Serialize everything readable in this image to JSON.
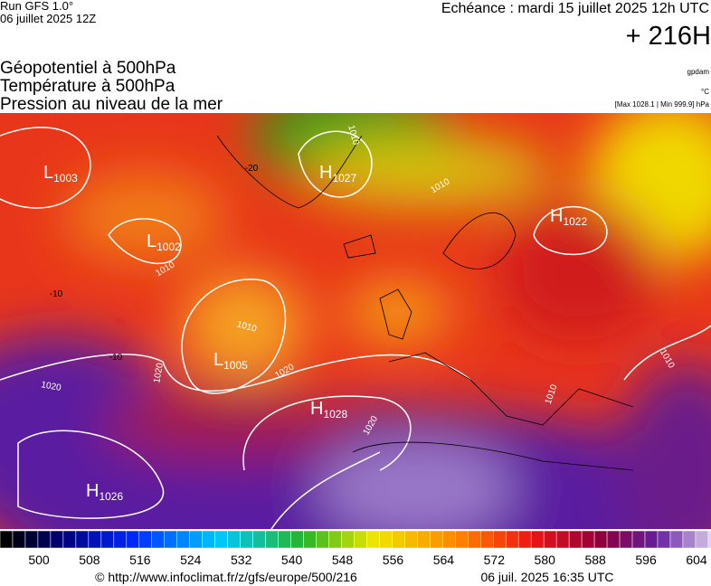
{
  "header": {
    "run": "Run GFS 1.0°",
    "run_date": "06 juillet 2025 12Z",
    "valid": "Echéance : mardi 15 juillet 2025 12h UTC",
    "lead": "+ 216H",
    "fields": [
      "Géopotentiel à 500hPa",
      "Température à 500hPa",
      "Pression au niveau de la mer"
    ],
    "units": [
      "gpdam",
      "°C",
      "[Max 1028.1 | Min 999.9] hPa"
    ]
  },
  "map": {
    "centers": [
      {
        "letter": "L",
        "value": "1003"
      },
      {
        "letter": "L",
        "value": "1002"
      },
      {
        "letter": "H",
        "value": "1027"
      },
      {
        "letter": "H",
        "value": "1022"
      },
      {
        "letter": "L",
        "value": "1005"
      },
      {
        "letter": "H",
        "value": "1028"
      },
      {
        "letter": "H",
        "value": "1026"
      }
    ],
    "isobar_labels": [
      "1010",
      "1010",
      "1010",
      "1010",
      "1020",
      "1020",
      "1020",
      "1020",
      "1010",
      "1010"
    ],
    "isotherm_labels": [
      "-20",
      "-10",
      "-10"
    ]
  },
  "colorbar": {
    "ticks": [
      500,
      508,
      516,
      524,
      532,
      540,
      548,
      556,
      564,
      572,
      580,
      588,
      596,
      604
    ]
  },
  "footer": {
    "source": "© http://www.infoclimat.fr/z/gfs/europe/500/216",
    "generated": "06 juil. 2025 16:35 UTC"
  }
}
